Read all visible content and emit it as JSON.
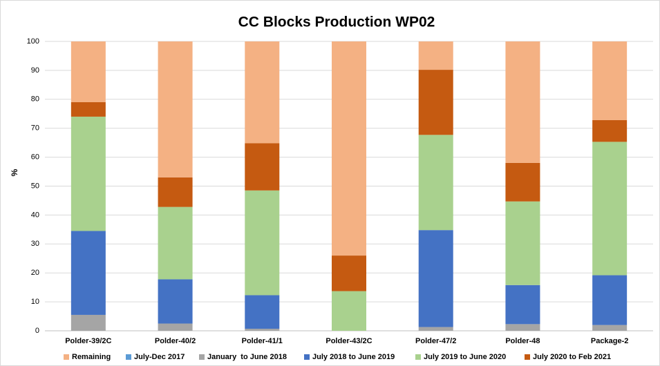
{
  "chart_data": {
    "type": "stacked_bar",
    "title": "CC Blocks Production WP02",
    "y_label": "%",
    "categories": [
      "Polder-39/2C",
      "Polder-40/2",
      "Polder-41/1",
      "Polder-43/2C",
      "Polder-47/2",
      "Polder-48",
      "Package-2"
    ],
    "series": [
      {
        "name": "Remaining",
        "color": "#f4b183",
        "values": [
          21,
          47,
          35.2,
          74,
          9.8,
          42,
          27.2
        ]
      },
      {
        "name": "July-Dec 2017",
        "color": "#5b9bd5",
        "values": [
          0,
          0,
          0,
          0,
          0,
          0,
          0
        ]
      },
      {
        "name": "January  to June 2018",
        "color": "#a5a5a5",
        "values": [
          5.5,
          2.5,
          0.7,
          0,
          1.3,
          2.3,
          2
        ]
      },
      {
        "name": "July 2018 to June 2019",
        "color": "#4472c4",
        "values": [
          29,
          15.3,
          11.6,
          0,
          33.5,
          13.5,
          17.2
        ]
      },
      {
        "name": "July 2019 to June 2020",
        "color": "#a9d18e",
        "values": [
          39.5,
          25,
          36.2,
          13.7,
          32.9,
          28.9,
          46.1
        ]
      },
      {
        "name": "July 2020 to Feb 2021",
        "color": "#c55a11",
        "values": [
          5,
          10.2,
          16.3,
          12.3,
          22.5,
          13.3,
          7.5
        ]
      }
    ],
    "ylim": [
      0,
      100
    ],
    "yticks": [
      0,
      10,
      20,
      30,
      40,
      50,
      60,
      70,
      80,
      90,
      100
    ],
    "grid": true,
    "legend": "bottom"
  }
}
